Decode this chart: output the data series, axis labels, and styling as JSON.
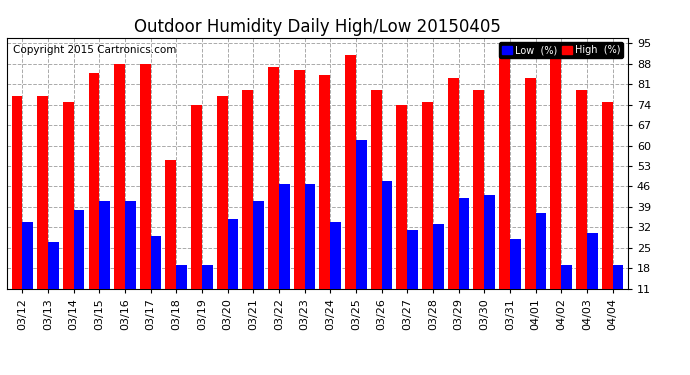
{
  "title": "Outdoor Humidity Daily High/Low 20150405",
  "copyright": "Copyright 2015 Cartronics.com",
  "categories": [
    "03/12",
    "03/13",
    "03/14",
    "03/15",
    "03/16",
    "03/17",
    "03/18",
    "03/19",
    "03/20",
    "03/21",
    "03/22",
    "03/23",
    "03/24",
    "03/25",
    "03/26",
    "03/27",
    "03/28",
    "03/29",
    "03/30",
    "03/31",
    "04/01",
    "04/02",
    "04/03",
    "04/04"
  ],
  "high_values": [
    77,
    77,
    75,
    85,
    88,
    88,
    55,
    74,
    77,
    79,
    87,
    86,
    84,
    91,
    79,
    74,
    75,
    83,
    79,
    92,
    83,
    95,
    79,
    75
  ],
  "low_values": [
    34,
    27,
    38,
    41,
    41,
    29,
    19,
    19,
    35,
    41,
    47,
    47,
    34,
    62,
    48,
    31,
    33,
    42,
    43,
    28,
    37,
    19,
    30,
    19
  ],
  "high_color": "#FF0000",
  "low_color": "#0000FF",
  "bg_color": "#FFFFFF",
  "plot_bg_color": "#FFFFFF",
  "grid_color": "#AAAAAA",
  "yticks": [
    11,
    18,
    25,
    32,
    39,
    46,
    53,
    60,
    67,
    74,
    81,
    88,
    95
  ],
  "ymin": 11,
  "ymax": 97,
  "legend_low_label": "Low  (%)",
  "legend_high_label": "High  (%)",
  "title_fontsize": 12,
  "copyright_fontsize": 7.5,
  "tick_fontsize": 8
}
